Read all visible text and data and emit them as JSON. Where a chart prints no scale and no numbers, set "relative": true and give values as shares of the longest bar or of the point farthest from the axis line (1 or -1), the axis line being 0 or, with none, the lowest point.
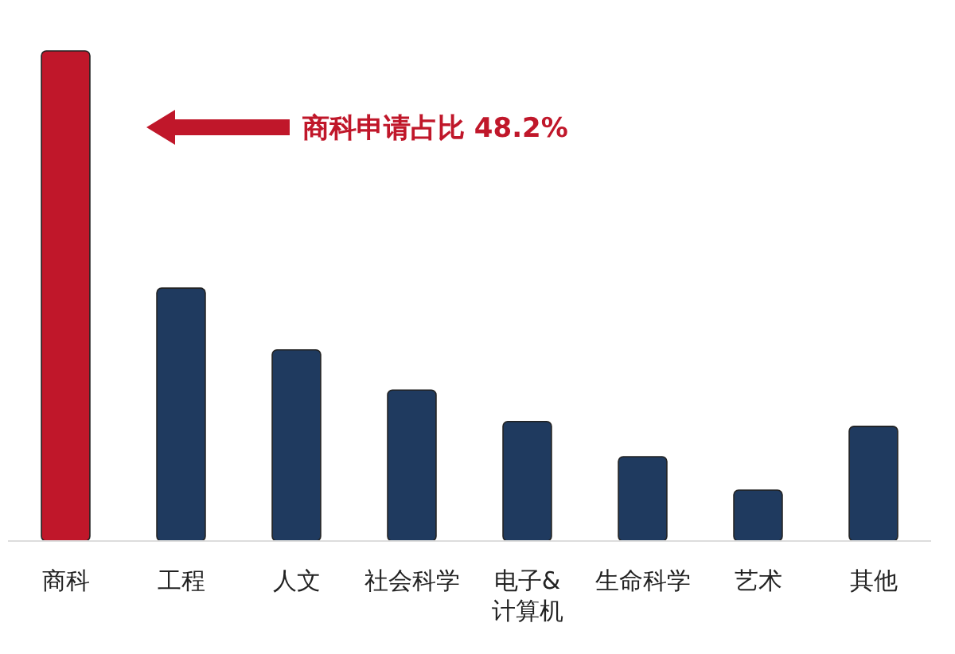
{
  "chart_data": {
    "type": "bar",
    "relative": true,
    "categories": [
      "商科",
      "工程",
      "人文",
      "社会科学",
      "电子&计算机",
      "生命科学",
      "艺术",
      "其他"
    ],
    "values": [
      1,
      0.516,
      0.39,
      0.308,
      0.244,
      0.172,
      0.104,
      0.234
    ],
    "colors": [
      "#c0172a",
      "#1f3a5f",
      "#1f3a5f",
      "#1f3a5f",
      "#1f3a5f",
      "#1f3a5f",
      "#1f3a5f",
      "#1f3a5f"
    ],
    "annotations": [
      "商科申请占比 48.2%"
    ]
  }
}
